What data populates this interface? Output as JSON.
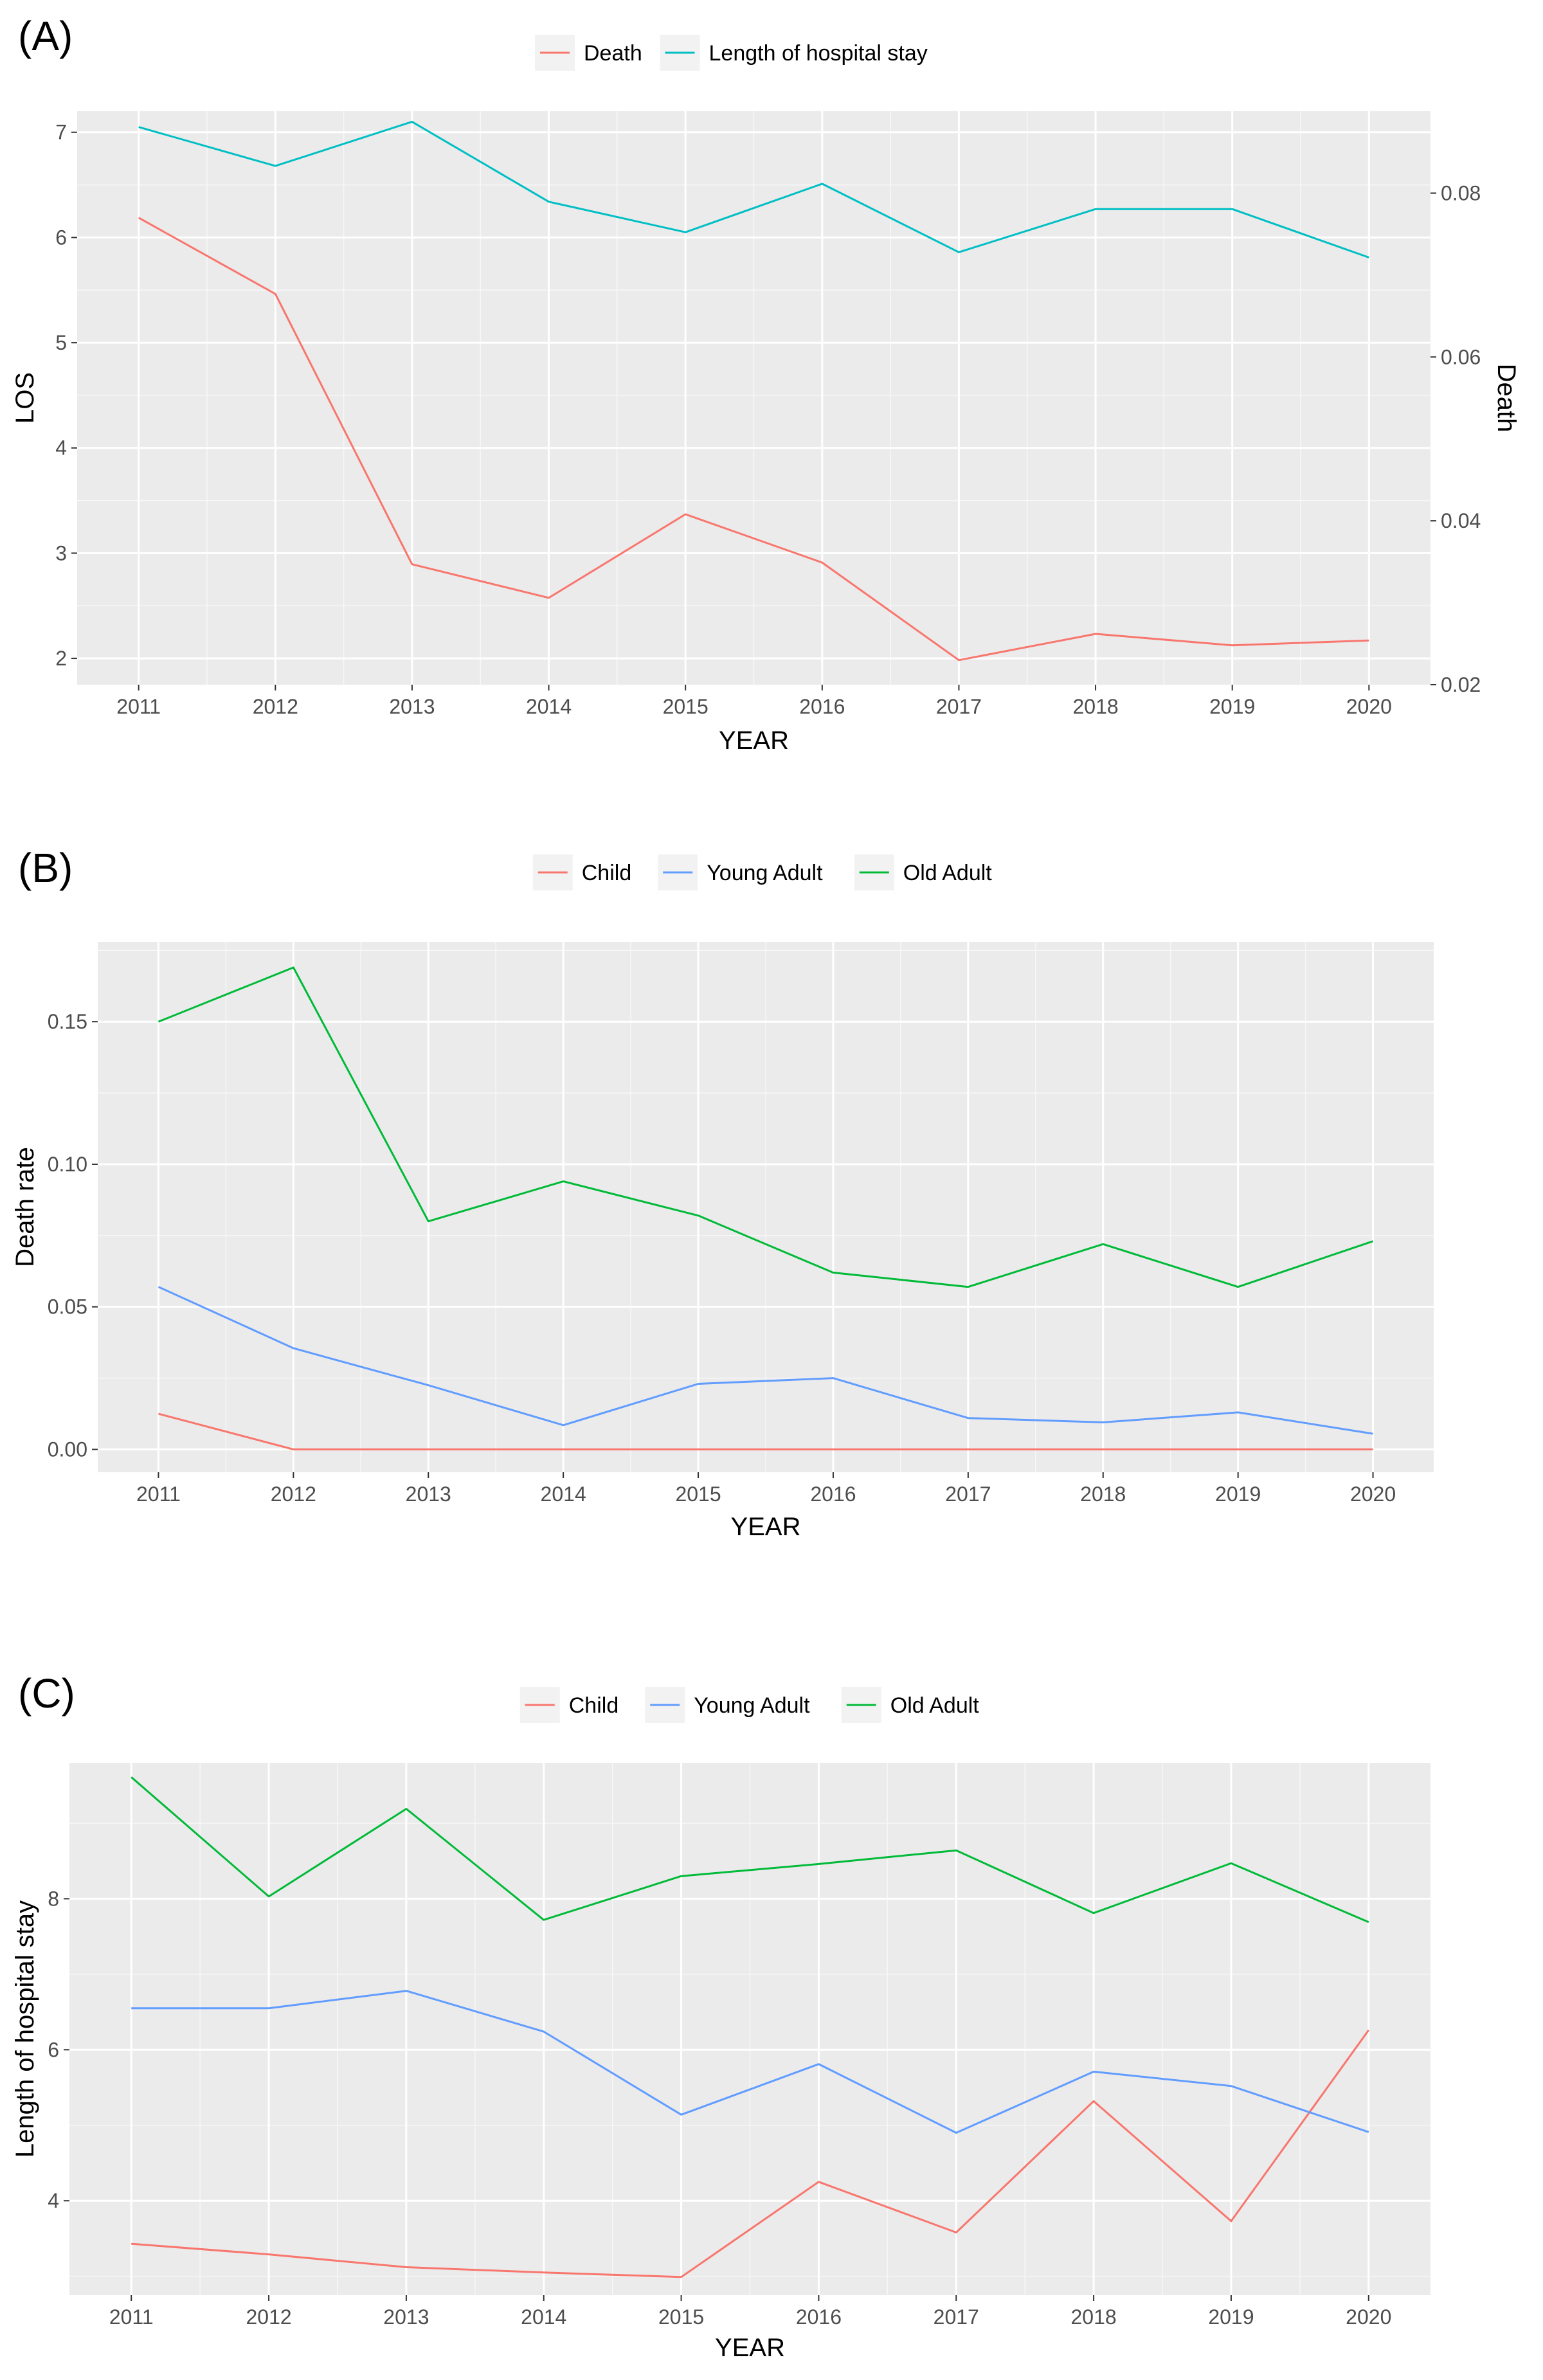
{
  "chart_data": [
    {
      "panel_label": "(A)",
      "type": "line",
      "xlabel": "YEAR",
      "ylabel": "LOS",
      "y2label": "Death",
      "x": [
        2011,
        2012,
        2013,
        2014,
        2015,
        2016,
        2017,
        2018,
        2019,
        2020
      ],
      "ylim": [
        1.75,
        7.2
      ],
      "yticks": [
        2,
        3,
        4,
        5,
        6,
        7
      ],
      "y2lim": [
        0.02,
        0.09
      ],
      "y2ticks": [
        0.02,
        0.04,
        0.06,
        0.08
      ],
      "y2tick_labels": [
        "0.02",
        "0.04",
        "0.06",
        "0.08"
      ],
      "legend_position": "top",
      "series": [
        {
          "name": "Death",
          "color": "#F8766D",
          "axis": "right",
          "values": [
            0.077,
            0.0677,
            0.0347,
            0.0306,
            0.0408,
            0.0349,
            0.023,
            0.0262,
            0.0248,
            0.0254
          ]
        },
        {
          "name": "Length of hospital stay",
          "color": "#00BFC4",
          "axis": "left",
          "values": [
            7.05,
            6.68,
            7.1,
            6.34,
            6.05,
            6.51,
            5.86,
            6.27,
            6.27,
            5.81
          ]
        }
      ]
    },
    {
      "panel_label": "(B)",
      "type": "line",
      "xlabel": "YEAR",
      "ylabel": "Death rate",
      "x": [
        2011,
        2012,
        2013,
        2014,
        2015,
        2016,
        2017,
        2018,
        2019,
        2020
      ],
      "ylim": [
        -0.008,
        0.178
      ],
      "yticks": [
        0.0,
        0.05,
        0.1,
        0.15
      ],
      "ytick_labels": [
        "0.00",
        "0.05",
        "0.10",
        "0.15"
      ],
      "legend_position": "top",
      "series": [
        {
          "name": "Child",
          "color": "#F8766D",
          "values": [
            0.0125,
            0,
            0,
            0,
            0,
            0,
            0,
            0,
            0,
            0
          ]
        },
        {
          "name": "Young Adult",
          "color": "#619CFF",
          "values": [
            0.057,
            0.0355,
            0.0225,
            0.0085,
            0.023,
            0.025,
            0.011,
            0.0095,
            0.013,
            0.0055
          ]
        },
        {
          "name": "Old Adult",
          "color": "#00BA38",
          "values": [
            0.15,
            0.169,
            0.08,
            0.094,
            0.082,
            0.062,
            0.057,
            0.072,
            0.057,
            0.073
          ]
        }
      ]
    },
    {
      "panel_label": "(C)",
      "type": "line",
      "xlabel": "YEAR",
      "ylabel": "Length of hospital stay",
      "x": [
        2011,
        2012,
        2013,
        2014,
        2015,
        2016,
        2017,
        2018,
        2019,
        2020
      ],
      "ylim": [
        2.75,
        9.8
      ],
      "yticks": [
        4,
        6,
        8
      ],
      "legend_position": "top",
      "series": [
        {
          "name": "Child",
          "color": "#F8766D",
          "values": [
            3.43,
            3.29,
            3.12,
            3.05,
            2.99,
            4.25,
            3.58,
            5.32,
            3.73,
            6.26
          ]
        },
        {
          "name": "Young Adult",
          "color": "#619CFF",
          "values": [
            6.55,
            6.55,
            6.78,
            6.24,
            5.14,
            5.81,
            4.9,
            5.71,
            5.52,
            4.91
          ]
        },
        {
          "name": "Old Adult",
          "color": "#00BA38",
          "values": [
            9.61,
            8.03,
            9.19,
            7.72,
            8.3,
            8.46,
            8.64,
            7.81,
            8.47,
            7.69
          ]
        }
      ]
    }
  ]
}
